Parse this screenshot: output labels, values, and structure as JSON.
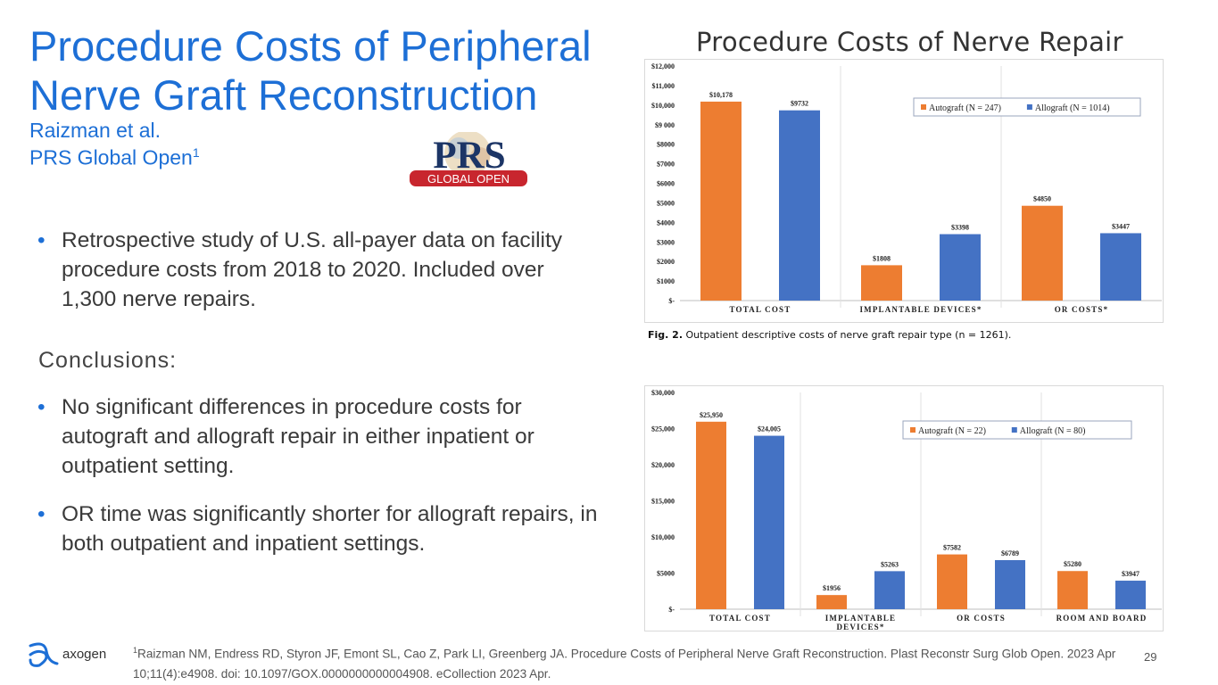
{
  "slide": {
    "title": "Procedure Costs of Peripheral Nerve Graft Reconstruction",
    "authors": "Raizman et al.",
    "journal": "PRS Global Open",
    "journal_ref_mark": "1",
    "chart_heading": "Procedure Costs of Nerve Repair",
    "bullets_intro": [
      "Retrospective study of U.S. all-payer data on facility procedure costs from 2018 to 2020. Included over 1,300 nerve repairs."
    ],
    "conclusions_label": "Conclusions:",
    "bullets_conclusions": [
      "No significant differences in procedure costs for autograft and allograft repair in either inpatient or outpatient setting.",
      "OR time was significantly shorter for allograft repairs, in both outpatient and inpatient settings."
    ],
    "bullet_char": "•",
    "logo": {
      "line1": "PRS",
      "line2": "GLOBAL OPEN"
    },
    "footer_logo_text": "axogen",
    "reference_mark": "1",
    "reference": "Raizman NM, Endress RD, Styron JF, Emont SL, Cao Z, Park LI, Greenberg JA. Procedure Costs of Peripheral Nerve Graft Reconstruction. Plast Reconstr Surg Glob Open. 2023 Apr 10;11(4):e4908. doi: 10.1097/GOX.0000000000004908. eCollection 2023 Apr.",
    "page_number": "29",
    "colors": {
      "title_blue": "#1d6fd6",
      "autograft": "#ed7d31",
      "allograft": "#4472c4"
    }
  },
  "chart_data": [
    {
      "type": "bar",
      "caption_label": "Fig. 2.",
      "caption": "Outpatient descriptive costs of nerve graft repair type (n = 1261).",
      "categories": [
        "TOTAL COST",
        "IMPLANTABLE DEVICES*",
        "OR COSTS*"
      ],
      "series": [
        {
          "name": "Autograft (N = 247)",
          "values": [
            10178,
            1808,
            4850
          ],
          "labels": [
            "$10,178",
            "$1808",
            "$4850"
          ],
          "color": "#ed7d31"
        },
        {
          "name": "Allograft (N = 1014)",
          "values": [
            9732,
            3398,
            3447
          ],
          "labels": [
            "$9732",
            "$3398",
            "$3447"
          ],
          "color": "#4472c4"
        }
      ],
      "ylim": [
        0,
        12000
      ],
      "yticks": [
        "$-",
        "$1000",
        "$2000",
        "$3000",
        "$4000",
        "$5000",
        "$6000",
        "$7000",
        "$8000",
        "$9 000",
        "$10,000",
        "$11,000",
        "$12,000"
      ],
      "legend": "top-right",
      "grid": false
    },
    {
      "type": "bar",
      "categories": [
        "TOTAL COST",
        "IMPLANTABLE DEVICES*",
        "OR COSTS",
        "ROOM AND BOARD"
      ],
      "series": [
        {
          "name": "Autograft (N = 22)",
          "values": [
            25950,
            1956,
            7582,
            5280
          ],
          "labels": [
            "$25,950",
            "$1956",
            "$7582",
            "$5280"
          ],
          "color": "#ed7d31"
        },
        {
          "name": "Allograft (N = 80)",
          "values": [
            24005,
            5263,
            6789,
            3947
          ],
          "labels": [
            "$24,005",
            "$5263",
            "$6789",
            "$3947"
          ],
          "color": "#4472c4"
        }
      ],
      "ylim": [
        0,
        30000
      ],
      "yticks": [
        "$-",
        "$5000",
        "$10,000",
        "$15,000",
        "$20,000",
        "$25,000",
        "$30,000"
      ],
      "legend": "top-right",
      "grid": false
    }
  ]
}
